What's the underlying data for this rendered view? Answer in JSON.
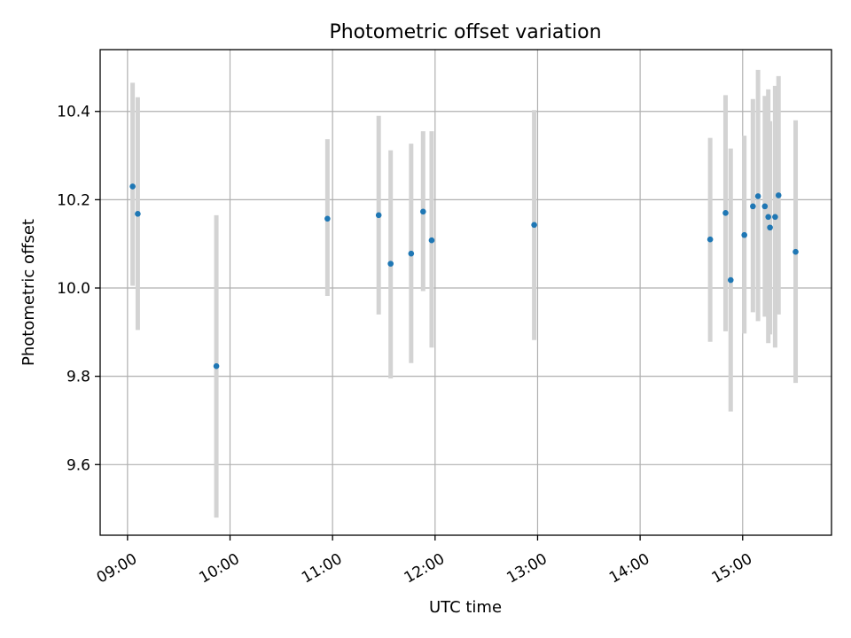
{
  "chart_data": {
    "type": "scatter",
    "title": "Photometric offset variation",
    "xlabel": "UTC time",
    "ylabel": "Photometric offset",
    "xlim": [
      "08:44",
      "15:52"
    ],
    "ylim": [
      9.44,
      10.54
    ],
    "grid": true,
    "x_ticks": [
      "09:00",
      "10:00",
      "11:00",
      "12:00",
      "13:00",
      "14:00",
      "15:00"
    ],
    "y_ticks": [
      9.6,
      9.8,
      10.0,
      10.2,
      10.4
    ],
    "colors": {
      "points": "#1f77b4",
      "error_bars": "#d3d3d3",
      "grid": "#b0b0b0"
    },
    "points": [
      {
        "x": "09:03",
        "y": 10.23,
        "lo": 10.005,
        "hi": 10.465
      },
      {
        "x": "09:06",
        "y": 10.168,
        "lo": 9.905,
        "hi": 10.432
      },
      {
        "x": "09:52",
        "y": 9.823,
        "lo": 9.48,
        "hi": 10.165
      },
      {
        "x": "10:57",
        "y": 10.157,
        "lo": 9.982,
        "hi": 10.337
      },
      {
        "x": "11:27",
        "y": 10.165,
        "lo": 9.94,
        "hi": 10.39
      },
      {
        "x": "11:34",
        "y": 10.055,
        "lo": 9.795,
        "hi": 10.312
      },
      {
        "x": "11:46",
        "y": 10.078,
        "lo": 9.83,
        "hi": 10.327
      },
      {
        "x": "11:53",
        "y": 10.173,
        "lo": 9.993,
        "hi": 10.355
      },
      {
        "x": "11:58",
        "y": 10.108,
        "lo": 9.865,
        "hi": 10.355
      },
      {
        "x": "12:58",
        "y": 10.143,
        "lo": 9.882,
        "hi": 10.403
      },
      {
        "x": "14:41",
        "y": 10.11,
        "lo": 9.878,
        "hi": 10.34
      },
      {
        "x": "14:50",
        "y": 10.17,
        "lo": 9.902,
        "hi": 10.437
      },
      {
        "x": "14:53",
        "y": 10.018,
        "lo": 9.72,
        "hi": 10.316
      },
      {
        "x": "15:01",
        "y": 10.12,
        "lo": 9.897,
        "hi": 10.345
      },
      {
        "x": "15:06",
        "y": 10.185,
        "lo": 9.945,
        "hi": 10.428
      },
      {
        "x": "15:09",
        "y": 10.208,
        "lo": 9.925,
        "hi": 10.494
      },
      {
        "x": "15:13",
        "y": 10.185,
        "lo": 9.935,
        "hi": 10.435
      },
      {
        "x": "15:15",
        "y": 10.161,
        "lo": 9.875,
        "hi": 10.45
      },
      {
        "x": "15:16",
        "y": 10.137,
        "lo": 9.895,
        "hi": 10.378
      },
      {
        "x": "15:19",
        "y": 10.161,
        "lo": 9.865,
        "hi": 10.458
      },
      {
        "x": "15:21",
        "y": 10.21,
        "lo": 9.94,
        "hi": 10.48
      },
      {
        "x": "15:31",
        "y": 10.082,
        "lo": 9.785,
        "hi": 10.38
      }
    ]
  }
}
